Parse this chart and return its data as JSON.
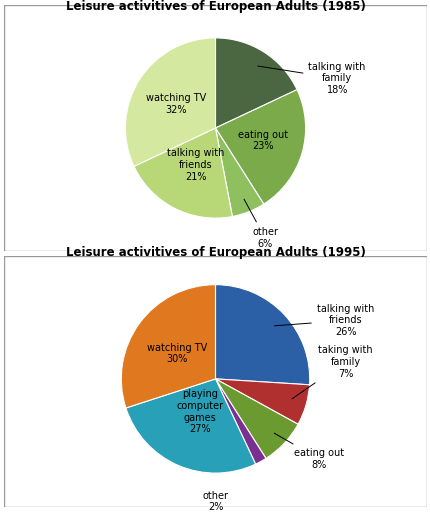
{
  "chart1": {
    "title": "Leisure activitives of European Adults (1985)",
    "labels": [
      "talking with\nfamily",
      "eating out",
      "other",
      "talking with\nfriends",
      "watching TV"
    ],
    "values": [
      18,
      23,
      6,
      21,
      32
    ],
    "colors": [
      "#4a6741",
      "#7aaa4a",
      "#8fc060",
      "#b8d878",
      "#d4e8a0"
    ],
    "startangle": 90
  },
  "chart2": {
    "title": "Leisure activitives of European Adults (1995)",
    "labels": [
      "talking with\nfriends",
      "taking with\nfamily",
      "eating out",
      "other",
      "playing\ncomputer\ngames",
      "watching TV"
    ],
    "values": [
      26,
      7,
      8,
      2,
      27,
      30
    ],
    "colors": [
      "#2b5fa6",
      "#b03030",
      "#6b9a30",
      "#7a3090",
      "#28a0b8",
      "#e07820"
    ],
    "startangle": 90
  },
  "border_color": "#cccccc",
  "bg_color": "#ffffff"
}
